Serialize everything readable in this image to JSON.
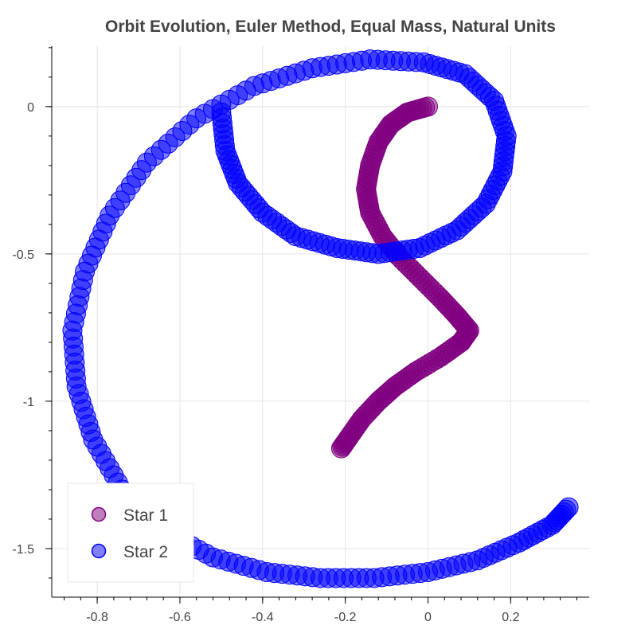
{
  "chart_data": {
    "type": "scatter",
    "title": "Orbit Evolution, Euler Method, Equal Mass, Natural Units",
    "xlabel": "",
    "ylabel": "",
    "xlim": [
      -0.91,
      0.39
    ],
    "ylim": [
      -1.665,
      0.205
    ],
    "x_ticks": [
      -0.8,
      -0.6,
      -0.4,
      -0.2,
      0,
      0.2
    ],
    "x_tick_labels": [
      "-0.8",
      "-0.6",
      "-0.4",
      "-0.2",
      "0",
      "0.2"
    ],
    "y_ticks": [
      0,
      -0.5,
      -1,
      -1.5
    ],
    "y_tick_labels": [
      "0",
      "-0.5",
      "-1",
      "-1.5"
    ],
    "grid": true,
    "legend_position": "bottom-left",
    "series": [
      {
        "name": "Star 1",
        "color": "#800080",
        "x": [
          0.0,
          -0.05,
          -0.09,
          -0.12,
          -0.14,
          -0.15,
          -0.14,
          -0.11,
          -0.07,
          -0.02,
          0.03,
          0.07,
          0.1,
          0.08,
          0.03,
          -0.03,
          -0.08,
          -0.12,
          -0.16,
          -0.19,
          -0.21
        ],
        "y": [
          0.0,
          -0.02,
          -0.06,
          -0.12,
          -0.2,
          -0.28,
          -0.36,
          -0.44,
          -0.51,
          -0.58,
          -0.65,
          -0.71,
          -0.76,
          -0.8,
          -0.85,
          -0.9,
          -0.95,
          -1.0,
          -1.06,
          -1.12,
          -1.16
        ]
      },
      {
        "name": "Star 2",
        "color": "#0000ff",
        "x": [
          -0.5,
          -0.49,
          -0.46,
          -0.4,
          -0.32,
          -0.22,
          -0.12,
          -0.02,
          0.07,
          0.14,
          0.18,
          0.19,
          0.16,
          0.09,
          -0.01,
          -0.14,
          -0.28,
          -0.42,
          -0.56,
          -0.68,
          -0.77,
          -0.83,
          -0.86,
          -0.85,
          -0.81,
          -0.74,
          -0.64,
          -0.52,
          -0.39,
          -0.26,
          -0.13,
          0.0,
          0.12,
          0.22,
          0.3,
          0.34
        ],
        "y": [
          -0.02,
          -0.15,
          -0.26,
          -0.36,
          -0.44,
          -0.48,
          -0.5,
          -0.48,
          -0.42,
          -0.33,
          -0.22,
          -0.1,
          0.02,
          0.11,
          0.15,
          0.16,
          0.13,
          0.07,
          -0.04,
          -0.19,
          -0.37,
          -0.56,
          -0.76,
          -0.95,
          -1.13,
          -1.3,
          -1.44,
          -1.53,
          -1.58,
          -1.6,
          -1.6,
          -1.58,
          -1.54,
          -1.48,
          -1.42,
          -1.36
        ]
      }
    ]
  }
}
